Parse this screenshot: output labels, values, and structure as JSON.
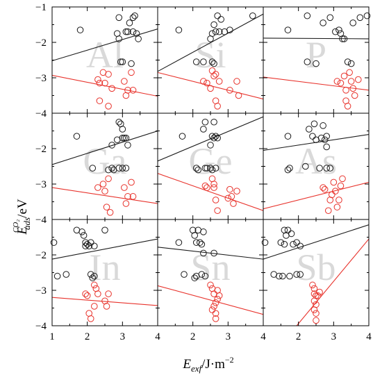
{
  "chart_data": {
    "type": "scatter",
    "grid": false,
    "layout": "3x3 small multiples, shared axes",
    "xlabel": {
      "main": "E",
      "sub": "exf",
      "unit": "/J·m",
      "sup": "−2"
    },
    "ylabel": {
      "main": "E",
      "sub": "ads",
      "sup": "CO₂",
      "unit": "/eV"
    },
    "xlim": [
      1,
      4
    ],
    "ylim": [
      -4,
      -1
    ],
    "xticks": {
      "values": [
        1,
        2,
        3,
        4,
        2,
        3,
        4,
        2,
        3,
        4
      ],
      "labels": [
        "1",
        "2",
        "3",
        "4",
        "2",
        "3",
        "4",
        "2",
        "3",
        "4"
      ]
    },
    "yticks": {
      "values": [
        -1,
        -2,
        -3,
        -4,
        -2,
        -3,
        -4,
        -2,
        -3,
        -4
      ],
      "labels": [
        "−1",
        "−2",
        "−3",
        "−4",
        "−2",
        "−3",
        "−4",
        "−2",
        "−3",
        "−4"
      ]
    },
    "colors": {
      "black_series": "#1a1a1a",
      "red_series": "#e8322b",
      "watermark": "#d9d9d9"
    },
    "panels": [
      {
        "label": "Al",
        "black_points": [
          [
            1.8,
            -1.65
          ],
          [
            2.85,
            -1.75
          ],
          [
            2.9,
            -1.3
          ],
          [
            3.0,
            -2.55
          ],
          [
            3.1,
            -1.7
          ],
          [
            3.15,
            -1.7
          ],
          [
            3.2,
            -1.45
          ],
          [
            3.3,
            -1.3
          ],
          [
            3.3,
            -1.7
          ],
          [
            3.35,
            -1.25
          ],
          [
            3.4,
            -1.75
          ],
          [
            3.45,
            -1.9
          ],
          [
            2.95,
            -2.55
          ],
          [
            3.25,
            -2.6
          ],
          [
            2.9,
            -1.9
          ]
        ],
        "red_points": [
          [
            2.3,
            -3.05
          ],
          [
            2.35,
            -3.15
          ],
          [
            2.45,
            -2.85
          ],
          [
            2.5,
            -3.15
          ],
          [
            2.6,
            -2.9
          ],
          [
            2.7,
            -3.3
          ],
          [
            2.6,
            -3.8
          ],
          [
            2.35,
            -3.65
          ],
          [
            3.05,
            -3.1
          ],
          [
            3.15,
            -3.35
          ],
          [
            3.1,
            -3.5
          ],
          [
            3.25,
            -2.85
          ],
          [
            3.3,
            -3.35
          ]
        ],
        "black_line": [
          [
            1,
            -2.52
          ],
          [
            4,
            -1.62
          ]
        ],
        "red_line": [
          [
            1,
            -2.93
          ],
          [
            4,
            -3.52
          ]
        ]
      },
      {
        "label": "Si",
        "black_points": [
          [
            1.6,
            -1.65
          ],
          [
            2.5,
            -1.9
          ],
          [
            2.55,
            -1.75
          ],
          [
            2.55,
            -2.55
          ],
          [
            2.6,
            -1.5
          ],
          [
            2.6,
            -2.6
          ],
          [
            2.65,
            -1.7
          ],
          [
            2.7,
            -1.25
          ],
          [
            2.75,
            -1.7
          ],
          [
            2.8,
            -1.35
          ],
          [
            2.9,
            -1.7
          ],
          [
            3.05,
            -1.65
          ],
          [
            3.7,
            -1.25
          ],
          [
            2.1,
            -2.55
          ],
          [
            2.3,
            -2.55
          ]
        ],
        "red_points": [
          [
            2.3,
            -3.1
          ],
          [
            2.4,
            -3.15
          ],
          [
            2.55,
            -2.8
          ],
          [
            2.6,
            -2.95
          ],
          [
            2.65,
            -3.65
          ],
          [
            2.7,
            -3.8
          ],
          [
            2.75,
            -3.1
          ],
          [
            3.05,
            -3.35
          ],
          [
            3.25,
            -3.1
          ],
          [
            3.3,
            -3.5
          ],
          [
            2.65,
            -2.9
          ],
          [
            2.5,
            -3.3
          ]
        ],
        "black_line": [
          [
            1,
            -2.82
          ],
          [
            4,
            -1.2
          ]
        ],
        "red_line": [
          [
            1,
            -2.85
          ],
          [
            4,
            -3.6
          ]
        ]
      },
      {
        "label": "P",
        "black_points": [
          [
            1.7,
            -1.65
          ],
          [
            2.25,
            -1.25
          ],
          [
            2.5,
            -2.6
          ],
          [
            2.7,
            -1.45
          ],
          [
            2.9,
            -1.3
          ],
          [
            3.05,
            -1.7
          ],
          [
            3.15,
            -1.65
          ],
          [
            3.2,
            -1.75
          ],
          [
            3.25,
            -1.9
          ],
          [
            3.3,
            -1.9
          ],
          [
            3.4,
            -2.55
          ],
          [
            3.5,
            -2.6
          ],
          [
            3.55,
            -1.45
          ],
          [
            3.75,
            -1.3
          ],
          [
            3.95,
            -1.25
          ],
          [
            2.25,
            -2.55
          ]
        ],
        "red_points": [
          [
            3.1,
            -3.1
          ],
          [
            3.2,
            -3.15
          ],
          [
            3.3,
            -2.95
          ],
          [
            3.35,
            -3.65
          ],
          [
            3.4,
            -3.8
          ],
          [
            3.45,
            -2.85
          ],
          [
            3.5,
            -3.1
          ],
          [
            3.55,
            -3.3
          ],
          [
            3.6,
            -3.5
          ],
          [
            3.7,
            -3.05
          ],
          [
            3.35,
            -3.35
          ]
        ],
        "black_line": [
          [
            1,
            -1.88
          ],
          [
            4,
            -1.9
          ]
        ],
        "red_line": [
          [
            1,
            -2.98
          ],
          [
            4,
            -3.35
          ]
        ]
      },
      {
        "label": "Ga",
        "black_points": [
          [
            1.7,
            -1.65
          ],
          [
            2.15,
            -2.55
          ],
          [
            2.7,
            -1.9
          ],
          [
            2.85,
            -1.75
          ],
          [
            2.9,
            -1.25
          ],
          [
            2.95,
            -1.3
          ],
          [
            3.0,
            -1.45
          ],
          [
            3.0,
            -1.7
          ],
          [
            3.05,
            -1.7
          ],
          [
            3.1,
            -1.7
          ],
          [
            3.15,
            -1.9
          ],
          [
            2.6,
            -2.6
          ],
          [
            2.7,
            -2.55
          ],
          [
            2.75,
            -2.6
          ],
          [
            3.0,
            -2.55
          ],
          [
            3.1,
            -2.55
          ],
          [
            2.9,
            -2.55
          ]
        ],
        "red_points": [
          [
            2.3,
            -3.1
          ],
          [
            2.45,
            -3.0
          ],
          [
            2.5,
            -3.2
          ],
          [
            2.6,
            -2.85
          ],
          [
            2.55,
            -3.65
          ],
          [
            2.65,
            -3.8
          ],
          [
            3.05,
            -3.1
          ],
          [
            3.15,
            -3.35
          ],
          [
            3.1,
            -3.55
          ],
          [
            3.25,
            -2.95
          ],
          [
            3.3,
            -3.35
          ]
        ],
        "black_line": [
          [
            1,
            -2.45
          ],
          [
            4,
            -1.5
          ]
        ],
        "red_line": [
          [
            1,
            -3.1
          ],
          [
            4,
            -3.55
          ]
        ]
      },
      {
        "label": "Ge",
        "black_points": [
          [
            1.7,
            -1.65
          ],
          [
            2.1,
            -2.55
          ],
          [
            2.15,
            -2.6
          ],
          [
            2.3,
            -1.45
          ],
          [
            2.35,
            -1.25
          ],
          [
            2.4,
            -2.55
          ],
          [
            2.5,
            -1.9
          ],
          [
            2.55,
            -1.65
          ],
          [
            2.6,
            -1.25
          ],
          [
            2.6,
            -1.7
          ],
          [
            2.55,
            -2.6
          ],
          [
            2.65,
            -2.55
          ],
          [
            2.65,
            -1.65
          ],
          [
            2.7,
            -1.7
          ],
          [
            2.5,
            -2.55
          ],
          [
            2.35,
            -2.55
          ]
        ],
        "red_points": [
          [
            2.35,
            -3.05
          ],
          [
            2.4,
            -3.1
          ],
          [
            2.55,
            -2.85
          ],
          [
            2.6,
            -3.0
          ],
          [
            2.6,
            -3.1
          ],
          [
            2.65,
            -3.45
          ],
          [
            2.7,
            -3.75
          ],
          [
            3.05,
            -3.15
          ],
          [
            3.1,
            -3.35
          ],
          [
            3.15,
            -3.55
          ],
          [
            3.25,
            -3.2
          ],
          [
            3.0,
            -3.4
          ]
        ],
        "black_line": [
          [
            1,
            -2.35
          ],
          [
            4,
            -1.1
          ]
        ],
        "red_line": [
          [
            1,
            -2.7
          ],
          [
            4,
            -3.75
          ]
        ]
      },
      {
        "label": "As",
        "black_points": [
          [
            1.7,
            -1.65
          ],
          [
            1.75,
            -2.55
          ],
          [
            2.2,
            -2.5
          ],
          [
            2.3,
            -1.45
          ],
          [
            2.4,
            -1.65
          ],
          [
            2.45,
            -1.3
          ],
          [
            2.5,
            -1.75
          ],
          [
            2.6,
            -2.55
          ],
          [
            2.65,
            -1.7
          ],
          [
            2.7,
            -1.35
          ],
          [
            2.75,
            -1.75
          ],
          [
            2.8,
            -1.65
          ],
          [
            2.8,
            -1.95
          ],
          [
            2.8,
            -2.55
          ],
          [
            2.9,
            -2.55
          ],
          [
            1.7,
            -2.6
          ]
        ],
        "red_points": [
          [
            2.7,
            -3.1
          ],
          [
            2.75,
            -3.15
          ],
          [
            2.85,
            -3.75
          ],
          [
            2.9,
            -3.45
          ],
          [
            2.95,
            -3.3
          ],
          [
            3.0,
            -2.95
          ],
          [
            3.05,
            -3.2
          ],
          [
            3.1,
            -3.65
          ],
          [
            3.15,
            -3.45
          ],
          [
            3.2,
            -3.05
          ],
          [
            3.25,
            -2.85
          ]
        ],
        "black_line": [
          [
            1,
            -2.05
          ],
          [
            4,
            -1.6
          ]
        ],
        "red_line": [
          [
            1,
            -3.7
          ],
          [
            4,
            -2.95
          ]
        ]
      },
      {
        "label": "In",
        "black_points": [
          [
            1.05,
            -1.65
          ],
          [
            1.15,
            -2.6
          ],
          [
            1.4,
            -2.55
          ],
          [
            1.7,
            -1.3
          ],
          [
            1.85,
            -1.35
          ],
          [
            1.9,
            -1.45
          ],
          [
            1.95,
            -1.65
          ],
          [
            2.0,
            -1.7
          ],
          [
            2.05,
            -1.75
          ],
          [
            2.1,
            -1.65
          ],
          [
            2.2,
            -1.75
          ],
          [
            2.2,
            -2.6
          ],
          [
            2.5,
            -1.3
          ],
          [
            2.1,
            -2.55
          ],
          [
            2.15,
            -2.65
          ],
          [
            1.95,
            -1.75
          ]
        ],
        "red_points": [
          [
            1.95,
            -3.1
          ],
          [
            2.0,
            -3.15
          ],
          [
            2.05,
            -3.65
          ],
          [
            2.1,
            -3.8
          ],
          [
            2.2,
            -2.85
          ],
          [
            2.25,
            -2.95
          ],
          [
            2.3,
            -3.1
          ],
          [
            2.5,
            -3.3
          ],
          [
            2.55,
            -3.45
          ],
          [
            2.6,
            -3.1
          ],
          [
            2.2,
            -3.45
          ]
        ],
        "black_line": [
          [
            1,
            -2.12
          ],
          [
            4,
            -1.55
          ]
        ],
        "red_line": [
          [
            1,
            -3.2
          ],
          [
            4,
            -3.43
          ]
        ]
      },
      {
        "label": "Sn",
        "black_points": [
          [
            1.6,
            -1.65
          ],
          [
            1.75,
            -2.55
          ],
          [
            2.0,
            -1.3
          ],
          [
            2.05,
            -1.45
          ],
          [
            2.1,
            -1.65
          ],
          [
            2.15,
            -1.3
          ],
          [
            2.2,
            -1.65
          ],
          [
            2.25,
            -1.7
          ],
          [
            2.3,
            -1.35
          ],
          [
            2.3,
            -1.95
          ],
          [
            2.35,
            -2.6
          ],
          [
            2.1,
            -2.6
          ],
          [
            2.05,
            -2.65
          ],
          [
            2.6,
            -1.95
          ],
          [
            2.25,
            -2.55
          ]
        ],
        "red_points": [
          [
            2.5,
            -2.85
          ],
          [
            2.55,
            -2.95
          ],
          [
            2.6,
            -3.1
          ],
          [
            2.6,
            -3.45
          ],
          [
            2.65,
            -3.65
          ],
          [
            2.65,
            -3.8
          ],
          [
            2.7,
            -3.0
          ],
          [
            2.7,
            -3.25
          ],
          [
            2.75,
            -3.15
          ],
          [
            2.55,
            -3.55
          ],
          [
            2.65,
            -3.35
          ]
        ],
        "black_line": [
          [
            1,
            -1.78
          ],
          [
            4,
            -2.12
          ]
        ],
        "red_line": [
          [
            1,
            -2.87
          ],
          [
            4,
            -3.68
          ]
        ]
      },
      {
        "label": "Sb",
        "black_points": [
          [
            1.05,
            -1.65
          ],
          [
            1.3,
            -2.55
          ],
          [
            1.45,
            -2.6
          ],
          [
            1.5,
            -1.65
          ],
          [
            1.6,
            -1.3
          ],
          [
            1.6,
            -1.7
          ],
          [
            1.65,
            -1.45
          ],
          [
            1.7,
            -1.3
          ],
          [
            1.75,
            -2.6
          ],
          [
            1.8,
            -1.4
          ],
          [
            1.85,
            -1.7
          ],
          [
            1.95,
            -1.65
          ],
          [
            2.05,
            -1.75
          ],
          [
            2.05,
            -2.55
          ],
          [
            1.95,
            -2.55
          ],
          [
            1.55,
            -2.6
          ]
        ],
        "red_points": [
          [
            2.4,
            -2.85
          ],
          [
            2.45,
            -2.95
          ],
          [
            2.45,
            -3.1
          ],
          [
            2.5,
            -3.15
          ],
          [
            2.5,
            -3.4
          ],
          [
            2.45,
            -3.55
          ],
          [
            2.5,
            -3.65
          ],
          [
            2.5,
            -3.85
          ],
          [
            2.55,
            -3.15
          ],
          [
            2.6,
            -3.05
          ],
          [
            2.45,
            -3.3
          ]
        ],
        "black_line": [
          [
            1,
            -2.12
          ],
          [
            4,
            -1.15
          ]
        ],
        "red_line": [
          [
            1.95,
            -4.0
          ],
          [
            4,
            -1.55
          ]
        ]
      }
    ]
  }
}
